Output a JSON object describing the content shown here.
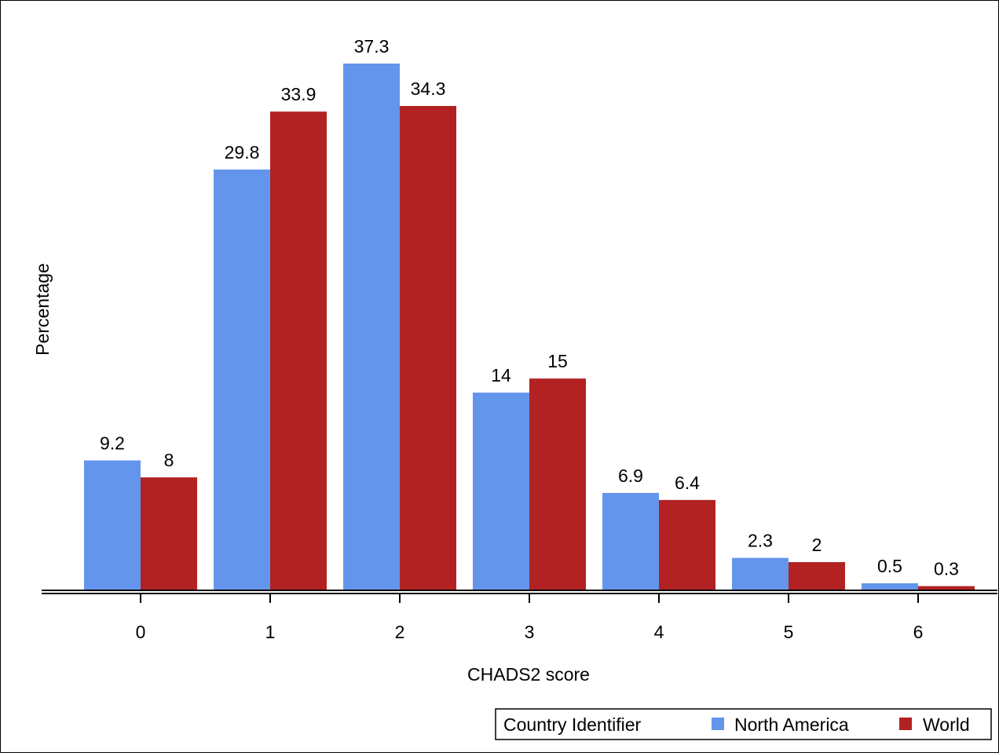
{
  "chart_data": {
    "type": "bar",
    "xlabel": "CHADS2 score",
    "ylabel": "Percentage",
    "categories": [
      "0",
      "1",
      "2",
      "3",
      "4",
      "5",
      "6"
    ],
    "series": [
      {
        "name": "North America",
        "color": "#6495ED",
        "values": [
          9.2,
          29.8,
          37.3,
          14,
          6.9,
          2.3,
          0.5
        ],
        "labels": [
          "9.2",
          "29.8",
          "37.3",
          "14",
          "6.9",
          "2.3",
          "0.5"
        ]
      },
      {
        "name": "World",
        "color": "#B22222",
        "values": [
          8,
          33.9,
          34.3,
          15,
          6.4,
          2,
          0.3
        ],
        "labels": [
          "8",
          "33.9",
          "34.3",
          "15",
          "6.4",
          "2",
          "0.3"
        ]
      }
    ],
    "ylim": [
      0,
      40
    ],
    "grid": false,
    "legend": {
      "title": "Country Identifier",
      "placement": "bottom-right"
    }
  }
}
